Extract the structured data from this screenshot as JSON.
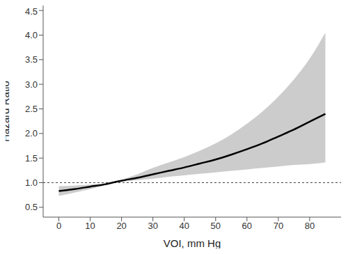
{
  "chart_data": {
    "type": "line",
    "x_label": "VOI, mm Hg",
    "y_label": "Hazard Ratio",
    "x": [
      0,
      5,
      10,
      15,
      17,
      20,
      25,
      30,
      35,
      40,
      45,
      50,
      55,
      60,
      65,
      70,
      75,
      80,
      85
    ],
    "series": [
      {
        "name": "Hazard Ratio",
        "color": "#000000",
        "values": [
          0.83,
          0.87,
          0.92,
          0.97,
          1.0,
          1.04,
          1.1,
          1.17,
          1.24,
          1.31,
          1.39,
          1.47,
          1.57,
          1.68,
          1.8,
          1.94,
          2.08,
          2.24,
          2.4
        ],
        "lower": [
          0.73,
          0.8,
          0.87,
          0.95,
          0.99,
          1.02,
          1.05,
          1.08,
          1.12,
          1.15,
          1.18,
          1.21,
          1.24,
          1.27,
          1.3,
          1.33,
          1.36,
          1.38,
          1.41
        ],
        "upper": [
          0.93,
          0.94,
          0.96,
          0.99,
          1.01,
          1.06,
          1.17,
          1.3,
          1.41,
          1.52,
          1.65,
          1.8,
          1.98,
          2.2,
          2.45,
          2.75,
          3.1,
          3.52,
          4.05
        ],
        "band_color": "#cccccc"
      }
    ],
    "reference_line": 1,
    "xlim": [
      -5,
      90
    ],
    "xticks": [
      0,
      10,
      20,
      30,
      40,
      50,
      60,
      70,
      80
    ],
    "ylim": [
      0.3,
      4.6
    ],
    "yticks": [
      0.5,
      1.0,
      1.5,
      2.0,
      2.5,
      3.0,
      3.5,
      4.0,
      4.5
    ],
    "grid": false
  }
}
